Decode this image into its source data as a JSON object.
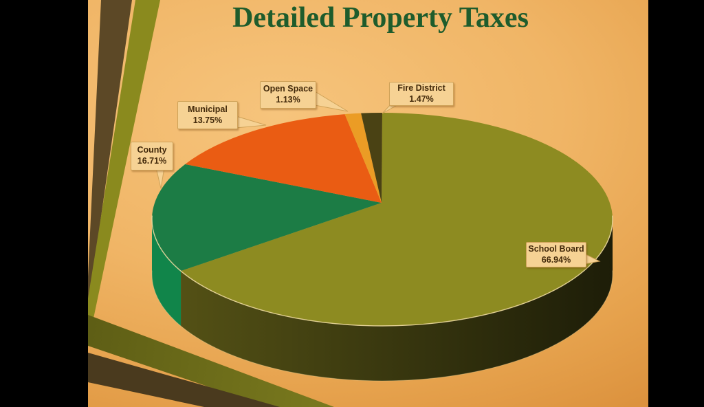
{
  "slide": {
    "title": "Detailed Property Taxes",
    "title_color": "#1e5c2c",
    "background_top": "#f6c47c",
    "background_bottom": "#d88c38",
    "pillarbox_color": "#000000"
  },
  "chart_data": {
    "type": "pie",
    "title": "Detailed Property Taxes",
    "labels": [
      "School Board",
      "County",
      "Municipal",
      "Open Space",
      "Fire District"
    ],
    "values": [
      66.94,
      16.71,
      13.75,
      1.13,
      1.47
    ],
    "colors": [
      "#8d8b21",
      "#1c7c45",
      "#ea5c13",
      "#eb9c25",
      "#4a4214"
    ],
    "side_colors": [
      "",
      "#11854a",
      "",
      "",
      ""
    ],
    "side_gradient": [
      "#575416",
      "#1d1d08"
    ],
    "rim_highlight": "#ecd9a0",
    "effect_3d": true,
    "start_angle": "12 o'clock, clockwise",
    "legend": "none",
    "data_labels": "category name and percentage in callout boxes"
  },
  "callouts": [
    {
      "label": "School Board",
      "pct": "66.94%"
    },
    {
      "label": "County",
      "pct": "16.71%"
    },
    {
      "label": "Municipal",
      "pct": "13.75%"
    },
    {
      "label": "Open Space",
      "pct": "1.13%"
    },
    {
      "label": "Fire District",
      "pct": "1.47%"
    }
  ],
  "callout_style": {
    "background": "#f6d294",
    "border": "#cfa258",
    "text": "#42290a"
  },
  "decor": {
    "stripe_brown": "#5c4826",
    "stripe_olive": "#8a8a1e",
    "stripe_brown_return": "#4a3a1e",
    "stripe_olive_return_left": "#5e5e15",
    "stripe_olive_return_right": "#7d7d1f"
  }
}
